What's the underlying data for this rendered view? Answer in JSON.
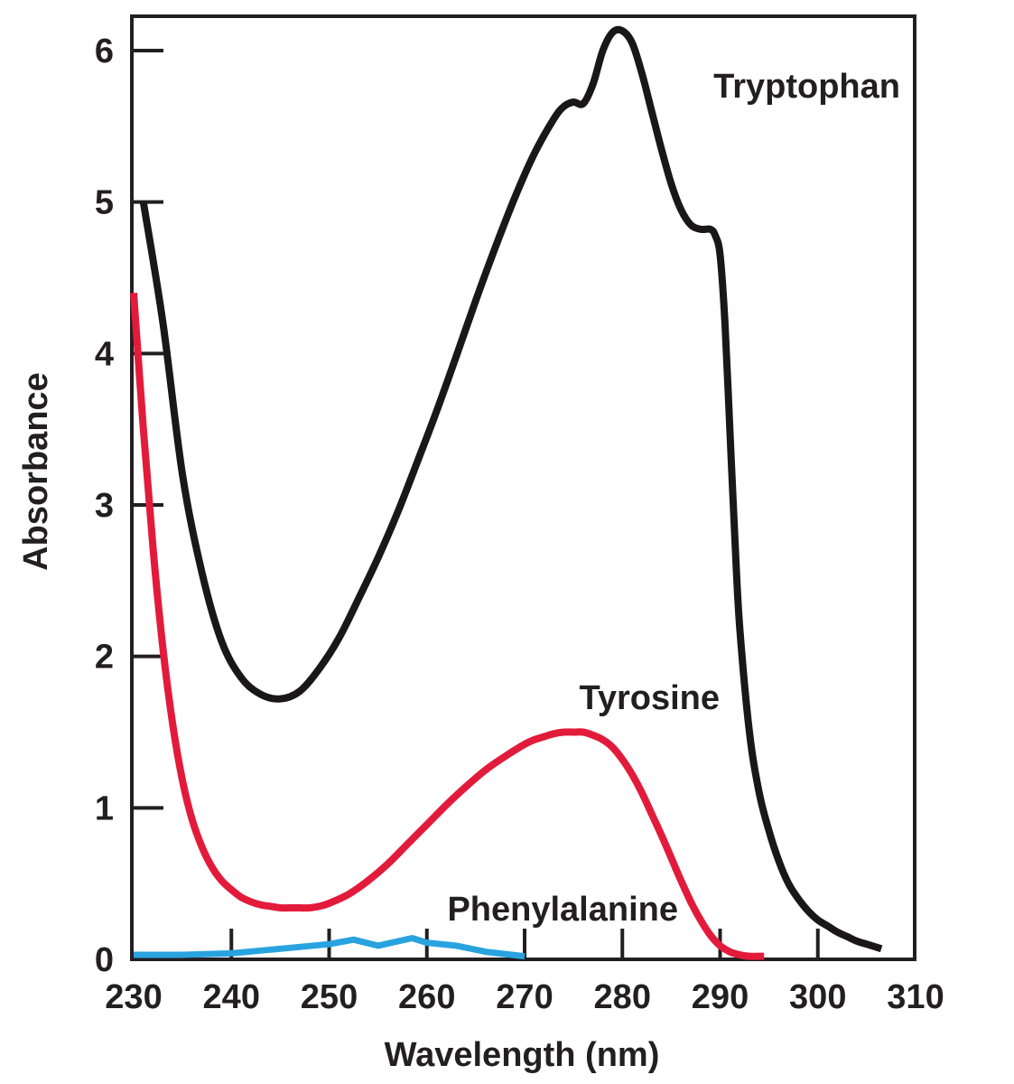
{
  "chart_data": {
    "type": "line",
    "xlabel": "Wavelength (nm)",
    "ylabel": "Absorbance",
    "xlim": [
      230,
      310
    ],
    "ylim": [
      0,
      6.2
    ],
    "x_ticks": [
      230,
      240,
      250,
      260,
      270,
      280,
      290,
      300,
      310
    ],
    "y_ticks": [
      0,
      1,
      2,
      3,
      4,
      5,
      6
    ],
    "grid": false,
    "legend": "none (series labeled directly on curves)",
    "series": [
      {
        "name": "Tryptophan",
        "color": "#1a1718",
        "x": [
          231,
          233,
          235,
          237,
          239,
          241,
          243,
          245,
          247,
          249,
          251,
          253,
          255,
          257,
          259,
          261,
          263,
          265,
          267,
          269,
          271,
          273,
          274,
          275,
          276,
          277,
          278,
          279,
          280,
          281,
          282,
          283,
          284,
          285,
          286,
          287,
          288,
          289,
          289.5,
          290,
          290.5,
          291,
          291.5,
          292,
          293,
          294,
          295,
          296,
          297,
          298,
          299,
          300,
          301,
          302,
          303,
          304,
          305,
          306.5
        ],
        "values": [
          5.0,
          4.2,
          3.2,
          2.55,
          2.1,
          1.86,
          1.75,
          1.72,
          1.77,
          1.92,
          2.12,
          2.38,
          2.65,
          2.95,
          3.28,
          3.62,
          3.98,
          4.35,
          4.7,
          5.03,
          5.32,
          5.55,
          5.63,
          5.66,
          5.65,
          5.78,
          6.0,
          6.12,
          6.13,
          6.05,
          5.85,
          5.6,
          5.35,
          5.12,
          4.95,
          4.85,
          4.82,
          4.82,
          4.78,
          4.65,
          4.2,
          3.5,
          2.8,
          2.2,
          1.5,
          1.1,
          0.85,
          0.65,
          0.5,
          0.4,
          0.32,
          0.26,
          0.22,
          0.18,
          0.15,
          0.12,
          0.1,
          0.07
        ]
      },
      {
        "name": "Tyrosine",
        "color": "#e31b3b",
        "x": [
          230,
          231,
          232,
          233,
          234,
          235,
          236,
          237,
          238,
          239,
          240,
          241,
          242,
          243,
          244,
          245,
          246,
          247,
          248,
          249,
          250,
          252,
          254,
          256,
          258,
          260,
          262,
          264,
          266,
          268,
          270,
          271,
          272,
          273,
          274,
          275,
          276,
          277,
          278,
          279,
          280,
          281,
          282,
          283,
          284,
          285,
          286,
          287,
          288,
          289,
          290,
          291,
          292,
          293,
          294.5
        ],
        "values": [
          4.4,
          3.5,
          2.7,
          2.05,
          1.55,
          1.18,
          0.92,
          0.74,
          0.61,
          0.52,
          0.46,
          0.41,
          0.38,
          0.36,
          0.35,
          0.34,
          0.34,
          0.34,
          0.34,
          0.35,
          0.37,
          0.43,
          0.52,
          0.63,
          0.76,
          0.89,
          1.02,
          1.14,
          1.25,
          1.34,
          1.42,
          1.45,
          1.47,
          1.49,
          1.5,
          1.5,
          1.5,
          1.48,
          1.45,
          1.4,
          1.32,
          1.22,
          1.1,
          0.96,
          0.82,
          0.67,
          0.52,
          0.38,
          0.26,
          0.16,
          0.09,
          0.05,
          0.03,
          0.02,
          0.02
        ]
      },
      {
        "name": "Phenylalanine",
        "color": "#29a3e0",
        "x": [
          230,
          235,
          240,
          245,
          250,
          252.5,
          255,
          258.5,
          260,
          263,
          266,
          270
        ],
        "values": [
          0.03,
          0.03,
          0.04,
          0.07,
          0.1,
          0.13,
          0.09,
          0.14,
          0.11,
          0.09,
          0.05,
          0.02
        ]
      }
    ]
  }
}
